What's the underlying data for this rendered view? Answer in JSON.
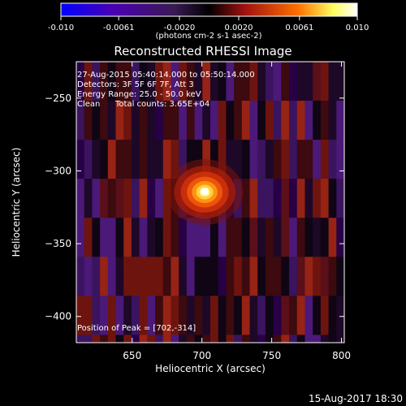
{
  "chart_data": {
    "type": "heatmap",
    "title": "Reconstructed RHESSI Image",
    "xlabel": "Heliocentric X (arcsec)",
    "ylabel": "Heliocentric Y (arcsec)",
    "xlim": [
      610,
      802
    ],
    "ylim": [
      -418,
      -225
    ],
    "x_ticks": [
      650,
      700,
      750,
      800
    ],
    "y_ticks": [
      -250,
      -300,
      -350,
      -400
    ],
    "colorbar": {
      "range": [
        -0.01,
        0.01
      ],
      "tick_values": [
        -0.01,
        -0.0061,
        -0.002,
        0.002,
        0.0061,
        0.01
      ],
      "tick_labels": [
        "-0.010",
        "-0.0061",
        "-0.0020",
        "0.0020",
        "0.0061",
        "0.010"
      ],
      "colors": [
        "#0000ff",
        "#4b00b0",
        "#3a1a55",
        "#000000",
        "#a01010",
        "#ff7000",
        "#ffff60",
        "#ffffff"
      ]
    },
    "peak": {
      "x": 702,
      "y": -314,
      "value": 0.01
    },
    "annotations": {
      "time_range": "27-Aug-2015 05:40:14.000 to 05:50:14.000",
      "detectors": "Detectors: 3F 5F 6F 7F, Att 3",
      "energy_range": "Energy Range: 25.0 - 50.0 keV",
      "clean": "Clean",
      "total_counts": "Total counts: 3.65E+04",
      "position_of_peak": "Position of Peak = [702,-314]"
    }
  },
  "colorbar_unit": "(photons cm-2 s-1 asec-2)",
  "footer_timestamp": "15-Aug-2017 18:30"
}
